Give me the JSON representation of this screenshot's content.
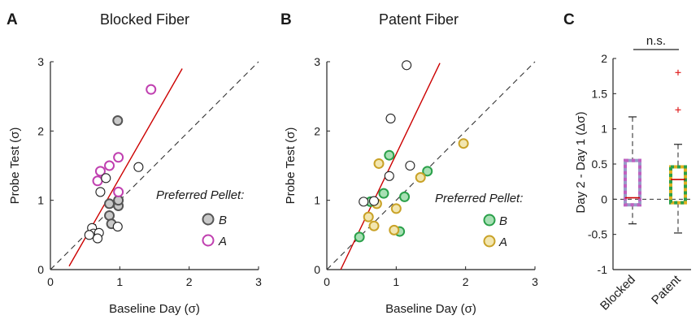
{
  "chart_data": [
    {
      "type": "scatter",
      "panel": "A",
      "title": "Blocked Fiber",
      "xlabel": "Baseline Day (σ)",
      "ylabel": "Probe Test (σ)",
      "xlim": [
        0,
        3
      ],
      "ylim": [
        0,
        3
      ],
      "xticks": [
        "0",
        "1",
        "2",
        "3"
      ],
      "yticks": [
        "0",
        "1",
        "2",
        "3"
      ],
      "legend": {
        "title": "Preferred Pellet:",
        "placement": "right",
        "entries": [
          {
            "label": "B",
            "fill": "#c9c9c9",
            "stroke": "#555555"
          },
          {
            "label": "A",
            "fill": "#ffffff",
            "stroke": "#c040b0"
          }
        ]
      },
      "reference_line": {
        "label": "identity",
        "x": [
          0,
          3
        ],
        "y": [
          0,
          3
        ],
        "style": "dashed"
      },
      "fit_line": {
        "x": [
          0.27,
          1.9
        ],
        "y": [
          0.05,
          2.9
        ],
        "color": "#cc0000"
      },
      "series": [
        {
          "group": "B",
          "fill": "#c9c9c9",
          "stroke": "#555555",
          "x": [
            0.97,
            0.85,
            0.85,
            0.88,
            0.98,
            0.98
          ],
          "y": [
            2.15,
            0.95,
            0.78,
            0.66,
            0.92,
            1.0
          ]
        },
        {
          "group": "A",
          "fill": "#ffffff",
          "stroke": "#c040b0",
          "x": [
            1.45,
            0.72,
            0.68,
            0.85,
            0.98,
            0.98
          ],
          "y": [
            2.6,
            1.42,
            1.28,
            1.5,
            1.62,
            1.12
          ]
        },
        {
          "group": "unlabeled",
          "fill": "#ffffff",
          "stroke": "#222222",
          "x": [
            1.27,
            0.8,
            0.72,
            0.6,
            0.62,
            0.56,
            0.7,
            0.68,
            0.97
          ],
          "y": [
            1.48,
            1.32,
            1.12,
            0.6,
            0.52,
            0.5,
            0.53,
            0.45,
            0.62
          ]
        }
      ]
    },
    {
      "type": "scatter",
      "panel": "B",
      "title": "Patent Fiber",
      "xlabel": "Baseline Day (σ)",
      "ylabel": "Probe Test (σ)",
      "xlim": [
        0,
        3
      ],
      "ylim": [
        0,
        3
      ],
      "xticks": [
        "0",
        "1",
        "2",
        "3"
      ],
      "yticks": [
        "0",
        "1",
        "2",
        "3"
      ],
      "legend": {
        "title": "Preferred Pellet:",
        "placement": "right",
        "entries": [
          {
            "label": "B",
            "fill": "#a8e0b4",
            "stroke": "#2aa04a"
          },
          {
            "label": "A",
            "fill": "#f2e6b0",
            "stroke": "#c9a227"
          }
        ]
      },
      "reference_line": {
        "label": "identity",
        "x": [
          0,
          3
        ],
        "y": [
          0,
          3
        ],
        "style": "dashed"
      },
      "fit_line": {
        "x": [
          0.2,
          1.63
        ],
        "y": [
          0.0,
          2.98
        ],
        "color": "#cc0000"
      },
      "series": [
        {
          "group": "B",
          "fill": "#a8e0b4",
          "stroke": "#2aa04a",
          "x": [
            0.9,
            0.82,
            0.63,
            1.12,
            1.45,
            1.05,
            0.47
          ],
          "y": [
            1.65,
            1.1,
            0.98,
            1.05,
            1.42,
            0.55,
            0.47
          ]
        },
        {
          "group": "A",
          "fill": "#f2e6b0",
          "stroke": "#c9a227",
          "x": [
            0.75,
            0.72,
            0.6,
            1.0,
            0.97,
            1.35,
            1.97,
            0.68
          ],
          "y": [
            1.53,
            0.95,
            0.76,
            0.88,
            0.57,
            1.33,
            1.82,
            0.63
          ]
        },
        {
          "group": "unlabeled",
          "fill": "#ffffff",
          "stroke": "#222222",
          "x": [
            1.15,
            0.92,
            1.2,
            0.9,
            0.53,
            0.68
          ],
          "y": [
            2.95,
            2.18,
            1.5,
            1.35,
            0.98,
            0.99
          ]
        }
      ]
    },
    {
      "type": "box",
      "panel": "C",
      "ylabel": "Day 2 - Day 1 (Δσ)",
      "ylim": [
        -1,
        2
      ],
      "yticks": [
        "-1",
        "-0.5",
        "0",
        "0.5",
        "1",
        "1.5",
        "2"
      ],
      "categories": [
        "Blocked",
        "Patent"
      ],
      "significance": "n.s.",
      "boxes": [
        {
          "name": "Blocked",
          "whisker_low": -0.35,
          "q1": -0.08,
          "median": 0.02,
          "q3": 0.55,
          "whisker_high": 1.17,
          "outliers": [],
          "colors": [
            "#c060c0",
            "#9a9ac8"
          ]
        },
        {
          "name": "Patent",
          "whisker_low": -0.48,
          "q1": -0.05,
          "median": 0.28,
          "q3": 0.46,
          "whisker_high": 0.78,
          "outliers": [
            1.8,
            1.27
          ],
          "colors": [
            "#2aa04a",
            "#e0b020"
          ]
        }
      ],
      "zero_line": {
        "y": 0,
        "style": "dashed"
      }
    }
  ],
  "labels": {
    "panel_a": "A",
    "panel_b": "B",
    "panel_c": "C"
  }
}
